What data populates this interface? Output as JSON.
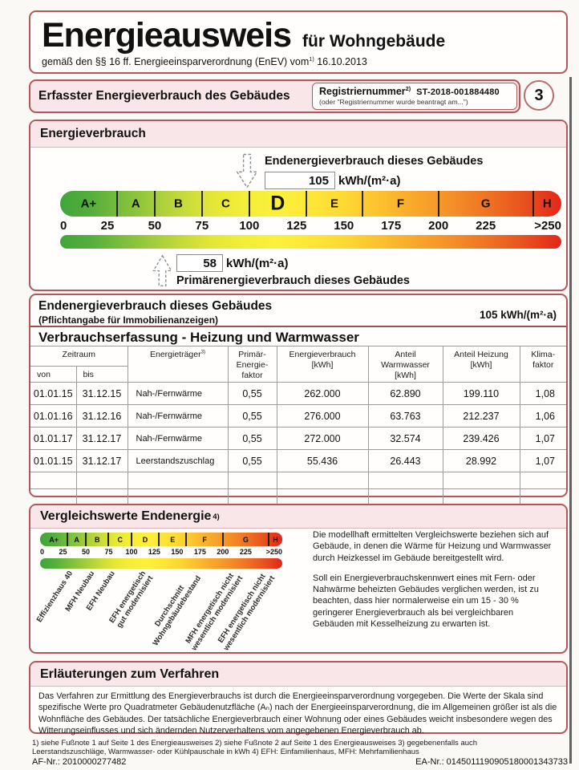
{
  "document": {
    "title": "Energieausweis",
    "title_suffix": "für Wohngebäude",
    "law_line": "gemäß den §§ 16 ff. Energieeinsparverordnung (EnEV) vom",
    "law_sup": "1)",
    "law_date": "16.10.2013"
  },
  "header_bar": {
    "title": "Erfasster Energieverbrauch des Gebäudes",
    "registry_label": "Registriernummer",
    "registry_sup": "2)",
    "registry_number": "ST-2018-001884480",
    "registry_note": "(oder \"Registriernummer wurde beantragt am...\")",
    "page_badge": "3"
  },
  "enev_scale": {
    "max": 265,
    "classes": [
      {
        "label": "A+",
        "from": 0,
        "to": 30
      },
      {
        "label": "A",
        "from": 30,
        "to": 50
      },
      {
        "label": "B",
        "from": 50,
        "to": 75
      },
      {
        "label": "C",
        "from": 75,
        "to": 100
      },
      {
        "label": "D",
        "from": 100,
        "to": 130,
        "highlight": true
      },
      {
        "label": "E",
        "from": 130,
        "to": 160
      },
      {
        "label": "F",
        "from": 160,
        "to": 200
      },
      {
        "label": "G",
        "from": 200,
        "to": 250
      },
      {
        "label": "H",
        "from": 250,
        "to": 265
      }
    ],
    "ticks": [
      {
        "label": "0",
        "value": 0
      },
      {
        "label": "25",
        "value": 25
      },
      {
        "label": "50",
        "value": 50
      },
      {
        "label": "75",
        "value": 75
      },
      {
        "label": "100",
        "value": 100
      },
      {
        "label": "125",
        "value": 125
      },
      {
        "label": "150",
        "value": 150
      },
      {
        "label": "175",
        "value": 175
      },
      {
        "label": "200",
        "value": 200
      },
      {
        "label": "225",
        "value": 225
      },
      {
        "label": ">250",
        "value": 257
      }
    ]
  },
  "energy_section": {
    "title": "Energieverbrauch",
    "end_energy_label": "Endenergieverbrauch dieses Gebäudes",
    "end_energy_value": "105",
    "end_energy_unit": "kWh/(m²·a)",
    "primary_energy_value": "58",
    "primary_energy_unit": "kWh/(m²·a)",
    "primary_energy_label": "Primärenergieverbrauch dieses Gebäudes"
  },
  "end_energy_banner": {
    "title": "Endenergieverbrauch dieses Gebäudes",
    "subtitle": "(Pflichtangabe für Immobilienanzeigen)",
    "value": "105  kWh/(m²·a)"
  },
  "consumption_table": {
    "title": "Verbrauchserfassung - Heizung und Warmwasser",
    "headers": {
      "zeitraum": "Zeitraum",
      "von": "von",
      "bis": "bis",
      "energietraeger": "Energieträger",
      "energietraeger_sup": "3)",
      "primaerfaktor": "Primär-\nEnergie-\nfaktor",
      "energieverbrauch": "Energieverbrauch\n[kWh]",
      "anteil_warmwasser": "Anteil\nWarmwasser\n[kWh]",
      "anteil_heizung": "Anteil Heizung\n[kWh]",
      "klimafaktor": "Klima-\nfaktor"
    },
    "rows": [
      [
        "01.01.15",
        "31.12.15",
        "Nah-/Fernwärme",
        "0,55",
        "262.000",
        "62.890",
        "199.110",
        "1,08"
      ],
      [
        "01.01.16",
        "31.12.16",
        "Nah-/Fernwärme",
        "0,55",
        "276.000",
        "63.763",
        "212.237",
        "1,06"
      ],
      [
        "01.01.17",
        "31.12.17",
        "Nah-/Fernwärme",
        "0,55",
        "272.000",
        "32.574",
        "239.426",
        "1,07"
      ],
      [
        "01.01.15",
        "31.12.17",
        "Leerstandszuschlag",
        "0,55",
        "55.436",
        "26.443",
        "28.992",
        "1,07"
      ]
    ],
    "empty_rows": 2
  },
  "comparison_section": {
    "title": "Vergleichswerte Endenergie",
    "title_sup": "4)",
    "markers": [
      {
        "lines": [
          "Effizienzhaus 40"
        ],
        "value": 30
      },
      {
        "lines": [
          "MFH Neubau"
        ],
        "value": 54
      },
      {
        "lines": [
          "EFH Neubau"
        ],
        "value": 76
      },
      {
        "lines": [
          "EFH energetisch",
          "gut modernisiert"
        ],
        "value": 110
      },
      {
        "lines": [
          "Durchschnitt",
          "Wohngebäudebestand"
        ],
        "value": 162
      },
      {
        "lines": [
          "MFH energetisch nicht",
          "wesentlich modernisiert"
        ],
        "value": 208
      },
      {
        "lines": [
          "EFH energetisch nicht",
          "wesentlich modernisiert"
        ],
        "value": 243
      }
    ],
    "paragraphs": [
      "Die modellhaft ermittelten Vergleichswerte beziehen sich auf Gebäude, in denen die Wärme für Heizung und Warmwasser durch Heizkessel im Gebäude bereitgestellt wird.",
      "Soll ein Energieverbrauchskennwert eines mit Fern- oder Nahwärme beheizten Gebäudes verglichen werden, ist zu beachten, dass hier normalerweise ein um 15 - 30 % geringerer Energieverbrauch als bei vergleichbaren Gebäuden mit Kesselheizung zu erwarten ist."
    ]
  },
  "explanation_section": {
    "title": "Erläuterungen zum Verfahren",
    "body": "Das Verfahren zur Ermittlung des Energieverbrauchs ist durch die Energieeinsparverordnung vorgegeben. Die Werte der Skala sind spezifische Werte pro Quadratmeter Gebäudenutzfläche (Aₙ) nach der Energieeinsparverordnung, die im Allgemeinen größer ist als die Wohnfläche des Gebäudes. Der tatsächliche Energieverbrauch einer Wohnung oder eines Gebäudes weicht insbesondere wegen des Witterungseinflusses und sich ändernden Nutzerverhaltens vom angegebenen Energieverbrauch ab."
  },
  "footer": {
    "footnotes_line1": "1) siehe Fußnote 1 auf Seite 1 des Energieausweises  2) siehe Fußnote 2 auf Seite 1 des Energieausweises  3) gegebenenfalls auch",
    "footnotes_line2": "Leerstandszuschläge, Warmwasser- oder Kühlpauschale in kWh  4) EFH: Einfamilienhaus, MFH: Mehrfamilienhaus",
    "af_number": "AF-Nr.: 2010000277482",
    "ea_number": "EA-Nr.: 0145011190905180001343733"
  },
  "colors": {
    "border_red": "#b4575c",
    "strip_pink": "#f8e6e8",
    "scale_green": "#3fa63a",
    "scale_yellow": "#fdf03a",
    "scale_red": "#e2261a"
  }
}
